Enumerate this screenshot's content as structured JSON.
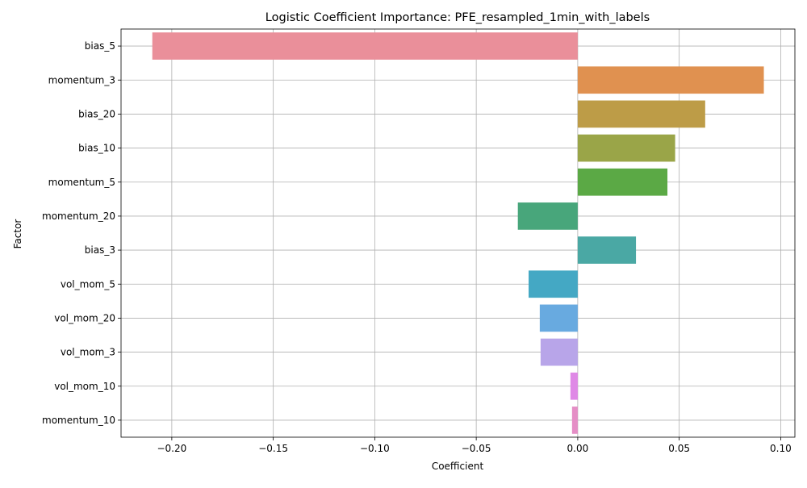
{
  "chart_data": {
    "type": "bar",
    "orientation": "horizontal",
    "title": "Logistic Coefficient Importance: PFE_resampled_1min_with_labels",
    "xlabel": "Coefficient",
    "ylabel": "Factor",
    "xlim": [
      -0.225,
      0.107
    ],
    "x_ticks": [
      -0.2,
      -0.15,
      -0.1,
      -0.05,
      0.0,
      0.05,
      0.1
    ],
    "x_tick_labels": [
      "−0.20",
      "−0.15",
      "−0.10",
      "−0.05",
      "0.00",
      "0.05",
      "0.10"
    ],
    "grid": true,
    "categories": [
      "bias_5",
      "momentum_3",
      "bias_20",
      "bias_10",
      "momentum_5",
      "momentum_20",
      "bias_3",
      "vol_mom_5",
      "vol_mom_20",
      "vol_mom_3",
      "vol_mom_10",
      "momentum_10"
    ],
    "values": [
      -0.2096,
      0.0917,
      0.0628,
      0.048,
      0.0442,
      -0.0295,
      0.0287,
      -0.0242,
      -0.0187,
      -0.0183,
      -0.0036,
      -0.0028
    ],
    "colors": [
      "#ea8f9a",
      "#e09150",
      "#bd9c47",
      "#9aa548",
      "#5ba945",
      "#48a67b",
      "#4aa8a4",
      "#44a8c4",
      "#68aae0",
      "#b8a5e9",
      "#df89e6",
      "#e58ec6"
    ]
  }
}
